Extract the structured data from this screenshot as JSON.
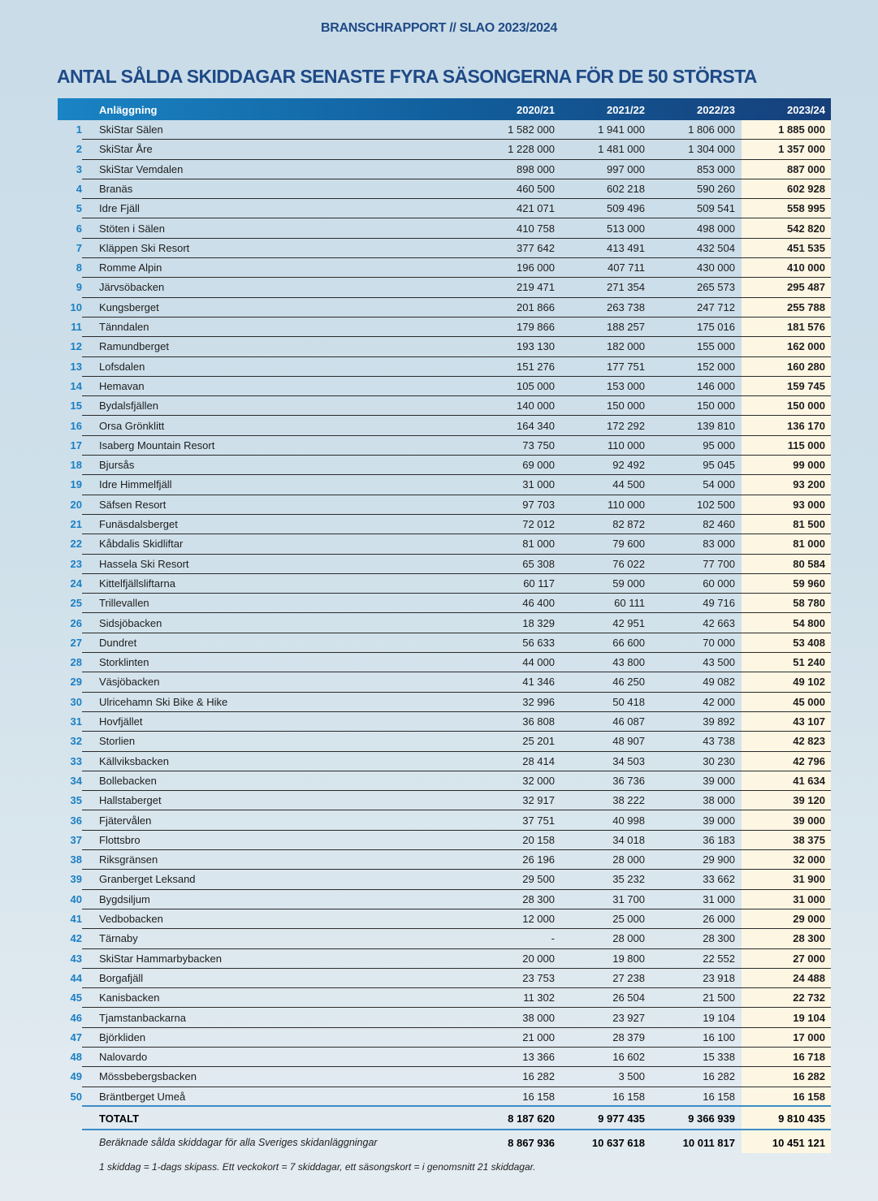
{
  "header": {
    "kicker": "BRANSCHRAPPORT // SLAO 2023/2024",
    "title": "ANTAL SÅLDA SKIDDAGAR SENASTE FYRA SÄSONGERNA FÖR DE 50 STÖRSTA"
  },
  "table": {
    "columns": [
      "Anläggning",
      "2020/21",
      "2021/22",
      "2022/23",
      "2023/24"
    ],
    "rows": [
      [
        "1",
        "SkiStar Sälen",
        "1 582 000",
        "1 941 000",
        "1 806 000",
        "1 885 000"
      ],
      [
        "2",
        "SkiStar Åre",
        "1 228 000",
        "1 481 000",
        "1 304 000",
        "1 357 000"
      ],
      [
        "3",
        "SkiStar Vemdalen",
        "898 000",
        "997 000",
        "853 000",
        "887 000"
      ],
      [
        "4",
        "Branäs",
        "460 500",
        "602 218",
        "590 260",
        "602 928"
      ],
      [
        "5",
        "Idre Fjäll",
        "421 071",
        "509 496",
        "509 541",
        "558 995"
      ],
      [
        "6",
        "Stöten i Sälen",
        "410 758",
        "513 000",
        "498 000",
        "542 820"
      ],
      [
        "7",
        "Kläppen Ski Resort",
        "377 642",
        "413 491",
        "432 504",
        "451 535"
      ],
      [
        "8",
        "Romme Alpin",
        "196 000",
        "407 711",
        "430 000",
        "410 000"
      ],
      [
        "9",
        "Järvsöbacken",
        "219 471",
        "271 354",
        "265 573",
        "295 487"
      ],
      [
        "10",
        "Kungsberget",
        "201 866",
        "263 738",
        "247 712",
        "255 788"
      ],
      [
        "11",
        "Tänndalen",
        "179 866",
        "188 257",
        "175 016",
        "181 576"
      ],
      [
        "12",
        "Ramundberget",
        "193 130",
        "182 000",
        "155 000",
        "162 000"
      ],
      [
        "13",
        "Lofsdalen",
        "151 276",
        "177 751",
        "152 000",
        "160 280"
      ],
      [
        "14",
        "Hemavan",
        "105 000",
        "153 000",
        "146 000",
        "159 745"
      ],
      [
        "15",
        "Bydalsfjällen",
        "140 000",
        "150 000",
        "150 000",
        "150 000"
      ],
      [
        "16",
        "Orsa Grönklitt",
        "164 340",
        "172 292",
        "139 810",
        "136 170"
      ],
      [
        "17",
        "Isaberg Mountain Resort",
        "73 750",
        "110 000",
        "95 000",
        "115 000"
      ],
      [
        "18",
        "Bjursås",
        "69 000",
        "92 492",
        "95 045",
        "99 000"
      ],
      [
        "19",
        "Idre Himmelfjäll",
        "31 000",
        "44 500",
        "54 000",
        "93 200"
      ],
      [
        "20",
        "Säfsen Resort",
        "97 703",
        "110 000",
        "102 500",
        "93 000"
      ],
      [
        "21",
        "Funäsdalsberget",
        "72 012",
        "82 872",
        "82 460",
        "81 500"
      ],
      [
        "22",
        "Kåbdalis Skidliftar",
        "81 000",
        "79 600",
        "83 000",
        "81 000"
      ],
      [
        "23",
        "Hassela Ski Resort",
        "65 308",
        "76 022",
        "77 700",
        "80 584"
      ],
      [
        "24",
        "Kittelfjällsliftarna",
        "60 117",
        "59 000",
        "60 000",
        "59 960"
      ],
      [
        "25",
        "Trillevallen",
        "46 400",
        "60 111",
        "49 716",
        "58 780"
      ],
      [
        "26",
        "Sidsjöbacken",
        "18 329",
        "42 951",
        "42 663",
        "54 800"
      ],
      [
        "27",
        "Dundret",
        "56 633",
        "66 600",
        "70 000",
        "53 408"
      ],
      [
        "28",
        "Storklinten",
        "44 000",
        "43 800",
        "43 500",
        "51 240"
      ],
      [
        "29",
        "Väsjöbacken",
        "41 346",
        "46 250",
        "49 082",
        "49 102"
      ],
      [
        "30",
        "Ulricehamn Ski Bike & Hike",
        "32 996",
        "50 418",
        "42 000",
        "45 000"
      ],
      [
        "31",
        "Hovfjället",
        "36 808",
        "46 087",
        "39 892",
        "43 107"
      ],
      [
        "32",
        "Storlien",
        "25 201",
        "48 907",
        "43 738",
        "42 823"
      ],
      [
        "33",
        "Källviksbacken",
        "28 414",
        "34 503",
        "30 230",
        "42 796"
      ],
      [
        "34",
        "Bollebacken",
        "32 000",
        "36 736",
        "39 000",
        "41 634"
      ],
      [
        "35",
        "Hallstaberget",
        "32 917",
        "38 222",
        "38 000",
        "39 120"
      ],
      [
        "36",
        "Fjätervålen",
        "37 751",
        "40 998",
        "39 000",
        "39 000"
      ],
      [
        "37",
        "Flottsbro",
        "20 158",
        "34 018",
        "36 183",
        "38 375"
      ],
      [
        "38",
        "Riksgränsen",
        "26 196",
        "28 000",
        "29 900",
        "32 000"
      ],
      [
        "39",
        "Granberget Leksand",
        "29 500",
        "35 232",
        "33 662",
        "31 900"
      ],
      [
        "40",
        "Bygdsiljum",
        "28 300",
        "31 700",
        "31 000",
        "31 000"
      ],
      [
        "41",
        "Vedbobacken",
        "12 000",
        "25 000",
        "26 000",
        "29 000"
      ],
      [
        "42",
        "Tärnaby",
        "-",
        "28 000",
        "28 300",
        "28 300"
      ],
      [
        "43",
        "SkiStar Hammarbybacken",
        "20 000",
        "19 800",
        "22 552",
        "27 000"
      ],
      [
        "44",
        "Borgafjäll",
        "23 753",
        "27 238",
        "23 918",
        "24 488"
      ],
      [
        "45",
        "Kanisbacken",
        "11 302",
        "26 504",
        "21 500",
        "22 732"
      ],
      [
        "46",
        "Tjamstanbackarna",
        "38 000",
        "23 927",
        "19 104",
        "19 104"
      ],
      [
        "47",
        "Björkliden",
        "21 000",
        "28 379",
        "16 100",
        "17 000"
      ],
      [
        "48",
        "Nalovardo",
        "13 366",
        "16 602",
        "15 338",
        "16 718"
      ],
      [
        "49",
        "Mössbebergsbacken",
        "16 282",
        "3 500",
        "16 282",
        "16 282"
      ],
      [
        "50",
        "Bräntberget Umeå",
        "16 158",
        "16 158",
        "16 158",
        "16 158"
      ]
    ],
    "total": {
      "label": "TOTALT",
      "values": [
        "8 187 620",
        "9 977 435",
        "9 366 939",
        "9 810 435"
      ]
    },
    "estimate": {
      "label": "Beräknade sålda skiddagar för alla Sveriges skidanläggningar",
      "values": [
        "8 867 936",
        "10 637 618",
        "10 011 817",
        "10 451 121"
      ]
    }
  },
  "footnote": "1 skiddag = 1-dags skipass. Ett veckokort = 7 skiddagar, ett säsongskort = i genomsnitt 21 skiddagar.",
  "colors": {
    "title": "#1f4a86",
    "accent": "#1a7fc4",
    "highlight": "#fdf6e3"
  }
}
